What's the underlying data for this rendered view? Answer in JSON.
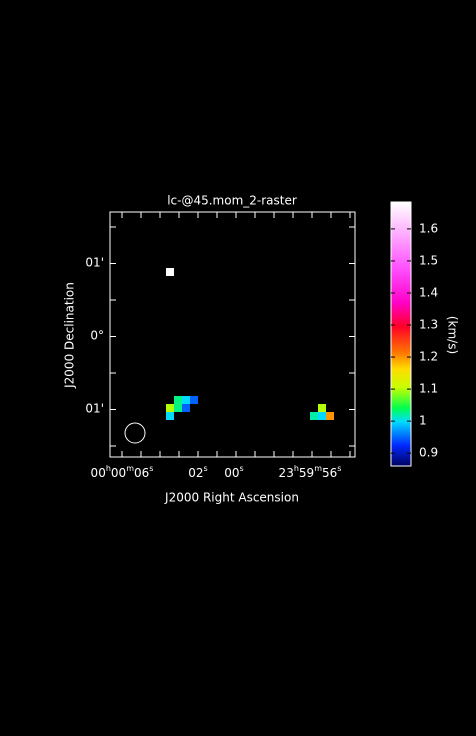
{
  "chart_data": {
    "type": "raster",
    "title": "lc-@45.mom_2-raster",
    "x_label": "J2000 Right Ascension",
    "y_label": "J2000 Declination",
    "x_tick_labels": [
      "00h00m06s",
      "02s",
      "00s",
      "23h59m56s"
    ],
    "y_tick_labels": [
      "01'",
      "0°",
      "01'"
    ],
    "pixels": [
      {
        "col": 7,
        "row": 7,
        "value": 1.68
      },
      {
        "col": 8,
        "row": 23,
        "value": 1.03
      },
      {
        "col": 9,
        "row": 23,
        "value": 1.0
      },
      {
        "col": 10,
        "row": 23,
        "value": 0.95
      },
      {
        "col": 7,
        "row": 24,
        "value": 1.1
      },
      {
        "col": 8,
        "row": 24,
        "value": 1.03
      },
      {
        "col": 9,
        "row": 24,
        "value": 0.95
      },
      {
        "col": 7,
        "row": 25,
        "value": 1.0
      },
      {
        "col": 26,
        "row": 24,
        "value": 1.1
      },
      {
        "col": 25,
        "row": 25,
        "value": 1.02
      },
      {
        "col": 26,
        "row": 25,
        "value": 1.0
      },
      {
        "col": 27,
        "row": 25,
        "value": 1.2
      }
    ],
    "colorbar": {
      "label": "(km/s)",
      "lim": [
        0.86,
        1.684
      ],
      "ticks": [
        0.9,
        1,
        1.1,
        1.2,
        1.3,
        1.4,
        1.5,
        1.6
      ]
    }
  }
}
